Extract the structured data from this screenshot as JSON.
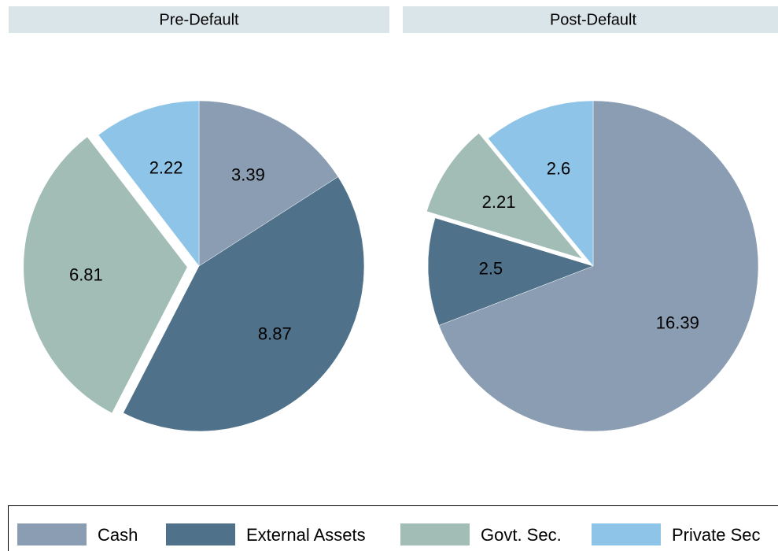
{
  "chart_data": [
    {
      "type": "pie",
      "title": "Pre-Default",
      "categories": [
        "Cash",
        "External Assets",
        "Govt. Sec.",
        "Private Sec"
      ],
      "values": [
        3.39,
        8.87,
        6.81,
        2.22
      ],
      "colors": [
        "#8a9db2",
        "#4f7189",
        "#a2bdb5",
        "#8ec4e8"
      ],
      "explode": [
        false,
        false,
        true,
        false
      ]
    },
    {
      "type": "pie",
      "title": "Post-Default",
      "categories": [
        "Cash",
        "External Assets",
        "Govt. Sec.",
        "Private Sec"
      ],
      "values": [
        16.39,
        2.5,
        2.21,
        2.6
      ],
      "colors": [
        "#8a9db2",
        "#4f7189",
        "#a2bdb5",
        "#8ec4e8"
      ],
      "explode": [
        false,
        false,
        true,
        false
      ]
    }
  ]
}
